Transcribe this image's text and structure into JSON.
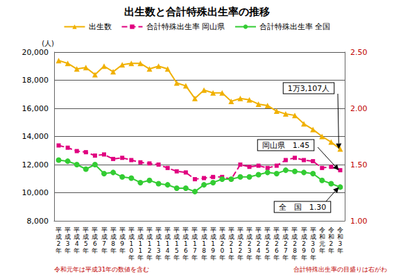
{
  "chart_data": {
    "type": "line",
    "title": "出生数と合計特殊出生率の推移",
    "categories": [
      "平成2年",
      "平成3年",
      "平成4年",
      "平成5年",
      "平成6年",
      "平成7年",
      "平成8年",
      "平成9年",
      "平成10年",
      "平成11年",
      "平成12年",
      "平成13年",
      "平成14年",
      "平成15年",
      "平成16年",
      "平成17年",
      "平成18年",
      "平成19年",
      "平成20年",
      "平成21年",
      "平成22年",
      "平成23年",
      "平成24年",
      "平成25年",
      "平成26年",
      "平成27年",
      "平成28年",
      "平成29年",
      "平成30年",
      "令和元年",
      "令和2年",
      "令和3年"
    ],
    "series": [
      {
        "name": "出生数",
        "color": "#f0b000",
        "marker": "triangle",
        "line_style": "solid",
        "values": [
          19400,
          19200,
          18800,
          18900,
          18400,
          19000,
          18600,
          19100,
          19200,
          19200,
          18800,
          19000,
          18800,
          17800,
          17600,
          16700,
          17300,
          17100,
          17100,
          16500,
          16700,
          16600,
          16300,
          16200,
          15800,
          15600,
          15500,
          14900,
          14500,
          14000,
          13600,
          13107
        ]
      },
      {
        "name": "合計特殊出生率 岡山県",
        "color": "#e0007f",
        "marker": "square",
        "line_style": "dashed",
        "axis": "y2",
        "values": [
          1.67,
          1.65,
          1.62,
          1.61,
          1.58,
          1.59,
          1.55,
          1.56,
          1.54,
          1.52,
          1.51,
          1.5,
          1.47,
          1.44,
          1.43,
          1.37,
          1.38,
          1.39,
          1.39,
          1.37,
          1.5,
          1.48,
          1.49,
          1.47,
          1.49,
          1.54,
          1.56,
          1.54,
          1.53,
          1.47,
          1.48,
          1.45
        ]
      },
      {
        "name": "合計特殊出生率 全国",
        "color": "#33cc33",
        "marker": "circle",
        "line_style": "solid",
        "axis": "y2",
        "values": [
          1.54,
          1.53,
          1.5,
          1.46,
          1.5,
          1.42,
          1.43,
          1.39,
          1.38,
          1.34,
          1.36,
          1.33,
          1.32,
          1.29,
          1.29,
          1.26,
          1.32,
          1.34,
          1.37,
          1.37,
          1.39,
          1.39,
          1.41,
          1.43,
          1.42,
          1.45,
          1.44,
          1.43,
          1.42,
          1.36,
          1.33,
          1.3
        ]
      }
    ],
    "y_label": "(人)",
    "ylim": [
      8000,
      20000
    ],
    "yticks": [
      {
        "value": 8000,
        "label": "8,000"
      },
      {
        "value": 10000,
        "label": "10,000"
      },
      {
        "value": 12000,
        "label": "12,000"
      },
      {
        "value": 14000,
        "label": "14,000"
      },
      {
        "value": 16000,
        "label": "16,000"
      },
      {
        "value": 18000,
        "label": "18,000"
      },
      {
        "value": 20000,
        "label": "20,000"
      }
    ],
    "y2lim": [
      1,
      2.5
    ],
    "y2ticks": [
      {
        "value": 1,
        "label": "1.00"
      },
      {
        "value": 1.5,
        "label": "1.50"
      },
      {
        "value": 2,
        "label": "2.00"
      },
      {
        "value": 2.5,
        "label": "2.50"
      }
    ],
    "annotations": [
      "1万3,107人",
      "岡山県　1.45",
      "全　国　1.30"
    ],
    "notes": [
      "令和元年は平成31年の数値を含む",
      "合計特殊出生率の目盛りは右がわ"
    ],
    "grid": true,
    "legend": "top"
  }
}
